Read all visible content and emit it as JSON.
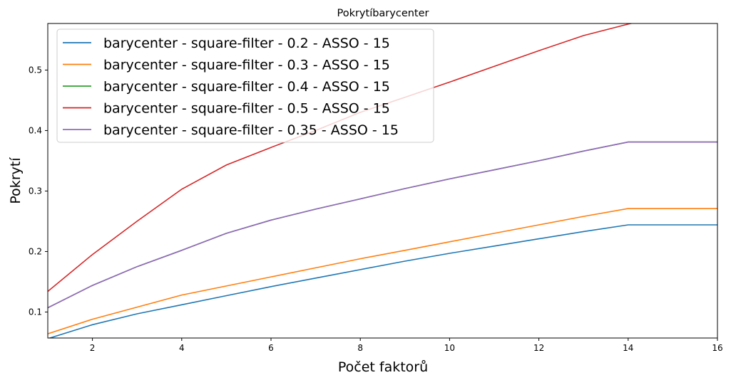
{
  "chart_data": {
    "type": "line",
    "title": "Pokrytíbarycenter",
    "xlabel": "Počet faktorů",
    "ylabel": "Pokrytí",
    "xlim": [
      1,
      16
    ],
    "ylim": [
      0.057,
      0.577
    ],
    "xticks": [
      2,
      4,
      6,
      8,
      10,
      12,
      14,
      16
    ],
    "yticks": [
      0.1,
      0.2,
      0.3,
      0.4,
      0.5
    ],
    "ytick_labels": [
      "0.1",
      "0.2",
      "0.3",
      "0.4",
      "0.5"
    ],
    "grid": false,
    "legend_position": "upper-left",
    "x": [
      1,
      2,
      3,
      4,
      5,
      6,
      7,
      8,
      9,
      10,
      11,
      12,
      13,
      14,
      15,
      16
    ],
    "series": [
      {
        "name": "barycenter - square-filter - 0.2 - ASSO - 15",
        "color": "#1f77b4",
        "values": [
          0.056,
          0.079,
          0.097,
          0.112,
          0.127,
          0.142,
          0.156,
          0.17,
          0.184,
          0.197,
          0.209,
          0.221,
          0.233,
          0.244,
          0.244,
          0.244
        ]
      },
      {
        "name": "barycenter - square-filter - 0.3 - ASSO - 15",
        "color": "#ff7f0e",
        "values": [
          0.064,
          0.088,
          0.108,
          0.128,
          0.143,
          0.158,
          0.173,
          0.188,
          0.202,
          0.216,
          0.23,
          0.244,
          0.258,
          0.271,
          0.271,
          0.271
        ]
      },
      {
        "name": "barycenter - square-filter - 0.4 - ASSO - 15",
        "color": "#2ca02c",
        "values": [
          0.107,
          0.144,
          0.175,
          0.202,
          0.23,
          0.252,
          0.27,
          0.287,
          0.304,
          0.32,
          0.335,
          0.35,
          0.366,
          0.381,
          0.381,
          0.381
        ]
      },
      {
        "name": "barycenter - square-filter - 0.5 - ASSO - 15",
        "color": "#d62728",
        "values": [
          0.134,
          0.195,
          0.25,
          0.303,
          0.343,
          0.372,
          0.4,
          0.43,
          0.455,
          0.48,
          0.506,
          0.532,
          0.557,
          0.576,
          0.593,
          0.61
        ]
      },
      {
        "name": "barycenter - square-filter - 0.35 - ASSO - 15",
        "color": "#9467bd",
        "values": [
          0.107,
          0.144,
          0.175,
          0.202,
          0.23,
          0.252,
          0.27,
          0.287,
          0.304,
          0.32,
          0.335,
          0.35,
          0.366,
          0.381,
          0.381,
          0.381
        ]
      }
    ]
  }
}
